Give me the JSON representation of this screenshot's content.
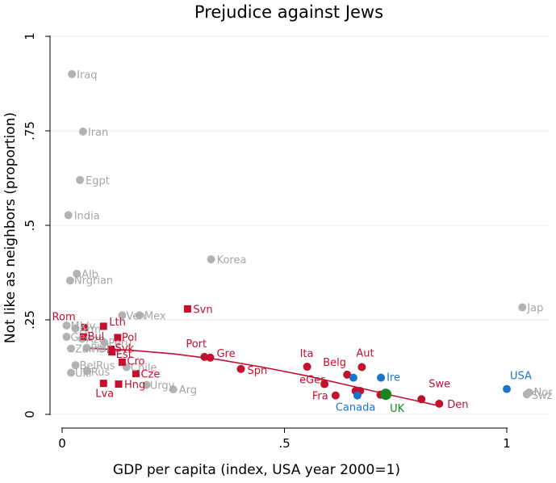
{
  "chart_data": {
    "type": "scatter",
    "title": "Prejudice against Jews",
    "xlabel": "GDP per capita (index, USA year 2000=1)",
    "ylabel": "Not like as neighbors (proportion)",
    "xlim": [
      0,
      1.0
    ],
    "ylim": [
      0,
      1
    ],
    "x_ticks": [
      {
        "value": 0,
        "label": "0"
      },
      {
        "value": 0.5,
        "label": ".5"
      },
      {
        "value": 1,
        "label": "1"
      }
    ],
    "y_ticks": [
      {
        "value": 0,
        "label": "0"
      },
      {
        "value": 0.25,
        "label": ".25"
      },
      {
        "value": 0.5,
        "label": ".5"
      },
      {
        "value": 0.75,
        "label": ".75"
      },
      {
        "value": 1,
        "label": "1"
      }
    ],
    "grid": true,
    "colors": {
      "gray": "#b3b3b3",
      "gray_text": "#a6a6a6",
      "red": "#c4102e",
      "blue": "#1874cd",
      "green": "#18861e",
      "grid": "#e9eff2",
      "fit": "#c4102e"
    },
    "series": [
      {
        "name": "gray",
        "color": "#b3b3b3",
        "marker": "circle",
        "points": [
          {
            "label": "Iraq",
            "x": 0.022,
            "y": 0.9
          },
          {
            "label": "Iran",
            "x": 0.047,
            "y": 0.748
          },
          {
            "label": "Egpt",
            "x": 0.04,
            "y": 0.62
          },
          {
            "label": "India",
            "x": 0.014,
            "y": 0.527
          },
          {
            "label": "Korea",
            "x": 0.335,
            "y": 0.41
          },
          {
            "label": "Alb",
            "x": 0.033,
            "y": 0.372
          },
          {
            "label": "Nrgrian",
            "x": 0.018,
            "y": 0.354
          },
          {
            "label": "Ven",
            "x": 0.135,
            "y": 0.262
          },
          {
            "label": "Mex",
            "x": 0.174,
            "y": 0.262
          },
          {
            "label": "Jap",
            "x": 1.035,
            "y": 0.283
          },
          {
            "label": "Nor",
            "x": 1.05,
            "y": 0.058
          },
          {
            "label": "Swz",
            "x": 1.045,
            "y": 0.053
          },
          {
            "label": "Urgy",
            "x": 0.19,
            "y": 0.078
          },
          {
            "label": "Arg",
            "x": 0.25,
            "y": 0.066
          },
          {
            "label": "BelRus",
            "x": 0.03,
            "y": 0.13
          },
          {
            "label": "Ukr",
            "x": 0.02,
            "y": 0.11
          },
          {
            "label": "Rus",
            "x": 0.056,
            "y": 0.115
          },
          {
            "label": "Chile",
            "x": 0.145,
            "y": 0.125
          },
          {
            "label": "Mldv",
            "x": 0.01,
            "y": 0.235
          },
          {
            "label": "Arm",
            "x": 0.03,
            "y": 0.227
          },
          {
            "label": "Geo",
            "x": 0.01,
            "y": 0.205
          },
          {
            "label": "Aze",
            "x": 0.045,
            "y": 0.2
          },
          {
            "label": "Zamb",
            "x": 0.02,
            "y": 0.174
          },
          {
            "label": "Phil",
            "x": 0.055,
            "y": 0.176
          },
          {
            "label": "Peru",
            "x": 0.095,
            "y": 0.19
          }
        ]
      },
      {
        "name": "red-squares",
        "color": "#c4102e",
        "marker": "square",
        "points": [
          {
            "label": "Svn",
            "x": 0.282,
            "y": 0.279
          },
          {
            "label": "Rom",
            "x": 0.05,
            "y": 0.23
          },
          {
            "label": "Lth",
            "x": 0.093,
            "y": 0.233
          },
          {
            "label": "Bul",
            "x": 0.048,
            "y": 0.205
          },
          {
            "label": "Pol",
            "x": 0.125,
            "y": 0.203
          },
          {
            "label": "Svk",
            "x": 0.11,
            "y": 0.172
          },
          {
            "label": "Est",
            "x": 0.112,
            "y": 0.165
          },
          {
            "label": "Cro",
            "x": 0.135,
            "y": 0.138
          },
          {
            "label": "Cze",
            "x": 0.166,
            "y": 0.108
          },
          {
            "label": "Lva",
            "x": 0.093,
            "y": 0.082
          },
          {
            "label": "Hng",
            "x": 0.127,
            "y": 0.08
          }
        ]
      },
      {
        "name": "red-circles",
        "color": "#c4102e",
        "marker": "circle",
        "points": [
          {
            "label": "Port",
            "x": 0.32,
            "y": 0.152
          },
          {
            "label": "Gre",
            "x": 0.333,
            "y": 0.15
          },
          {
            "label": "Spn",
            "x": 0.402,
            "y": 0.12
          },
          {
            "label": "Ita",
            "x": 0.551,
            "y": 0.126
          },
          {
            "label": "eGer",
            "x": 0.59,
            "y": 0.08
          },
          {
            "label": "Fra",
            "x": 0.615,
            "y": 0.05
          },
          {
            "label": "Belg",
            "x": 0.641,
            "y": 0.105
          },
          {
            "label": "Aut",
            "x": 0.674,
            "y": 0.125
          },
          {
            "label": "",
            "x": 0.66,
            "y": 0.062
          },
          {
            "label": "",
            "x": 0.67,
            "y": 0.062
          },
          {
            "label": "",
            "x": 0.716,
            "y": 0.052
          },
          {
            "label": "Swe",
            "x": 0.808,
            "y": 0.04
          },
          {
            "label": "Den",
            "x": 0.848,
            "y": 0.028
          }
        ]
      },
      {
        "name": "blue",
        "color": "#1874cd",
        "marker": "circle",
        "points": [
          {
            "label": "Ire",
            "x": 0.717,
            "y": 0.097
          },
          {
            "label": "USA",
            "x": 1.0,
            "y": 0.067
          },
          {
            "label": "Canada",
            "x": 0.664,
            "y": 0.05
          },
          {
            "label": "",
            "x": 0.655,
            "y": 0.097
          }
        ]
      },
      {
        "name": "green",
        "color": "#18861e",
        "marker": "circle-large",
        "points": [
          {
            "label": "UK",
            "x": 0.728,
            "y": 0.053
          }
        ]
      }
    ],
    "fit_line": [
      {
        "x": 0.05,
        "y": 0.175
      },
      {
        "x": 0.15,
        "y": 0.17
      },
      {
        "x": 0.25,
        "y": 0.16
      },
      {
        "x": 0.35,
        "y": 0.145
      },
      {
        "x": 0.45,
        "y": 0.125
      },
      {
        "x": 0.55,
        "y": 0.102
      },
      {
        "x": 0.65,
        "y": 0.075
      },
      {
        "x": 0.75,
        "y": 0.048
      },
      {
        "x": 0.85,
        "y": 0.022
      }
    ]
  }
}
